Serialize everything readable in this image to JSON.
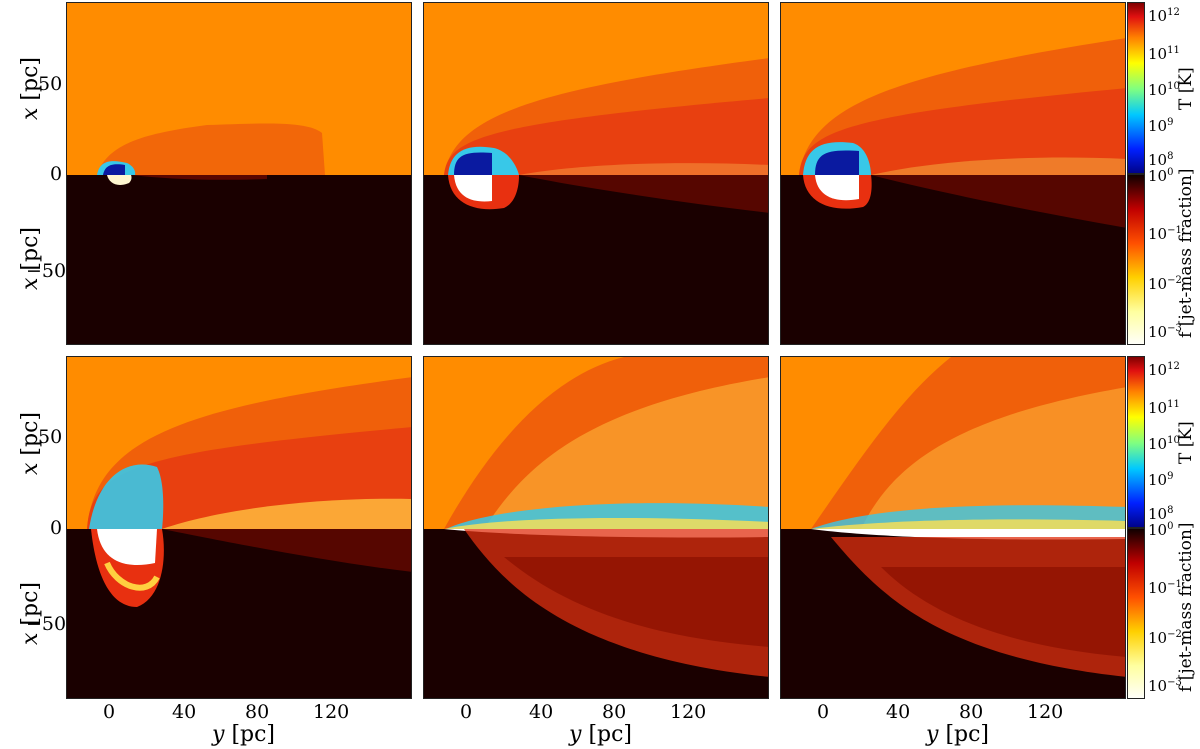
{
  "axes": {
    "x_var": "x",
    "y_var": "y",
    "unit": "[pc]",
    "x_ticks": [
      "50",
      "0",
      "−50"
    ],
    "y_ticks": [
      "0",
      "40",
      "80",
      "120"
    ]
  },
  "colorbars": {
    "temperature": {
      "label": "T [K]",
      "ticks": [
        {
          "base": "10",
          "exp": "12"
        },
        {
          "base": "10",
          "exp": "11"
        },
        {
          "base": "10",
          "exp": "10"
        },
        {
          "base": "10",
          "exp": "9"
        },
        {
          "base": "10",
          "exp": "8"
        }
      ]
    },
    "fraction": {
      "label": "f [jet-mass fraction]",
      "ticks": [
        {
          "base": "10",
          "exp": "0"
        },
        {
          "base": "10",
          "exp": "−1"
        },
        {
          "base": "10",
          "exp": "−2"
        },
        {
          "base": "10",
          "exp": "−3"
        }
      ]
    }
  },
  "colors": {
    "ambient": "#ff8c00",
    "shocked": "#e8400a",
    "dark": "#1a0000",
    "cold": "#0a1aa0",
    "cyan": "#38c8e8",
    "yellow": "#ffe050"
  },
  "panels": [
    {
      "id": "a",
      "row": "top",
      "col": 1
    },
    {
      "id": "b",
      "row": "top",
      "col": 2
    },
    {
      "id": "c",
      "row": "top",
      "col": 3
    },
    {
      "id": "d",
      "row": "bottom",
      "col": 1
    },
    {
      "id": "e",
      "row": "bottom",
      "col": 2
    },
    {
      "id": "f",
      "row": "bottom",
      "col": 3
    }
  ]
}
